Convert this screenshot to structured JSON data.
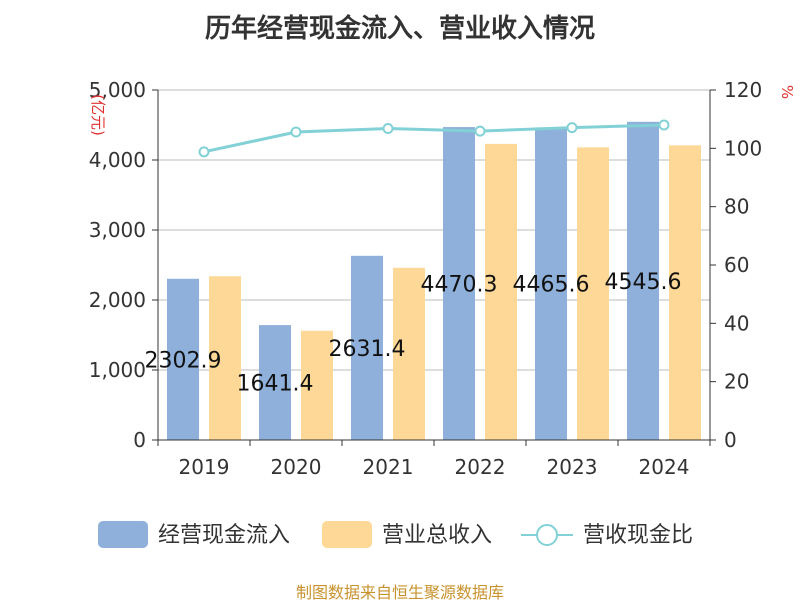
{
  "title": "历年经营现金流入、营业收入情况",
  "footer": "制图数据来自恒生聚源数据库",
  "colors": {
    "series1": "#8eb0da",
    "series2": "#fed896",
    "line": "#82d1d6",
    "unit": "#e03030",
    "axis": "#333333",
    "grid": "#bbbbbb",
    "text": "#333333",
    "footer": "#c8922e"
  },
  "chart_data": {
    "type": "bar",
    "categories": [
      "2019",
      "2020",
      "2021",
      "2022",
      "2023",
      "2024"
    ],
    "series": [
      {
        "name": "经营现金流入",
        "axis": "left",
        "values": [
          2302.9,
          1641.4,
          2631.4,
          4470.3,
          4465.6,
          4545.6
        ]
      },
      {
        "name": "营业总收入",
        "axis": "left",
        "values": [
          2340,
          1560,
          2460,
          4230,
          4180,
          4210
        ]
      },
      {
        "name": "营收现金比",
        "axis": "right",
        "type": "line",
        "values": [
          98.8,
          105.6,
          106.8,
          105.9,
          107.1,
          108.0
        ]
      }
    ],
    "data_labels": [
      "2302.9",
      "1641.4",
      "2631.4",
      "4470.3",
      "4465.6",
      "4545.6"
    ],
    "y_left": {
      "label": "(亿元)",
      "ylim": [
        0,
        5000
      ],
      "ticks": [
        "0",
        "1,000",
        "2,000",
        "3,000",
        "4,000",
        "5,000"
      ]
    },
    "y_right": {
      "label": "%",
      "ylim": [
        0,
        120
      ],
      "ticks": [
        "0",
        "20",
        "40",
        "60",
        "80",
        "100",
        "120"
      ]
    },
    "legend": [
      {
        "name": "经营现金流入",
        "kind": "bar",
        "color_key": "series1"
      },
      {
        "name": "营业总收入",
        "kind": "bar",
        "color_key": "series2"
      },
      {
        "name": "营收现金比",
        "kind": "line",
        "color_key": "line"
      }
    ],
    "legend_position": "bottom",
    "grid": true
  }
}
